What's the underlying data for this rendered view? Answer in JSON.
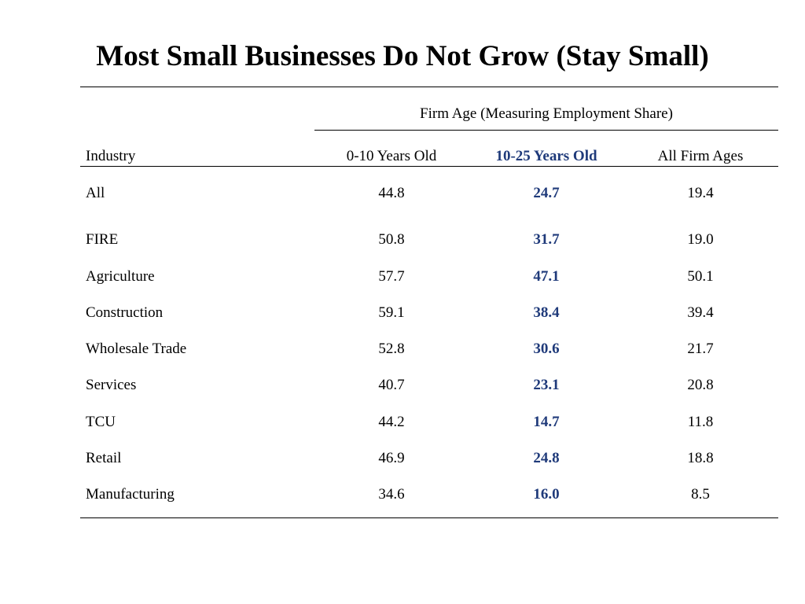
{
  "title": "Most Small Businesses Do Not Grow (Stay Small)",
  "table": {
    "group_header": "Firm Age (Measuring Employment Share)",
    "columns": [
      "Industry",
      "0-10 Years Old",
      "10-25 Years Old",
      "All Firm Ages"
    ],
    "highlight_column": "10-25 Years Old",
    "highlight_color": "#1f3a7a",
    "rows": [
      [
        "All",
        "44.8",
        "24.7",
        "19.4"
      ],
      [
        "FIRE",
        "50.8",
        "31.7",
        "19.0"
      ],
      [
        "Agriculture",
        "57.7",
        "47.1",
        "50.1"
      ],
      [
        "Construction",
        "59.1",
        "38.4",
        "39.4"
      ],
      [
        "Wholesale Trade",
        "52.8",
        "30.6",
        "21.7"
      ],
      [
        "Services",
        "40.7",
        "23.1",
        "20.8"
      ],
      [
        "TCU",
        "44.2",
        "14.7",
        "11.8"
      ],
      [
        "Retail",
        "46.9",
        "24.8",
        "18.8"
      ],
      [
        "Manufacturing",
        "34.6",
        "16.0",
        "8.5"
      ]
    ]
  }
}
